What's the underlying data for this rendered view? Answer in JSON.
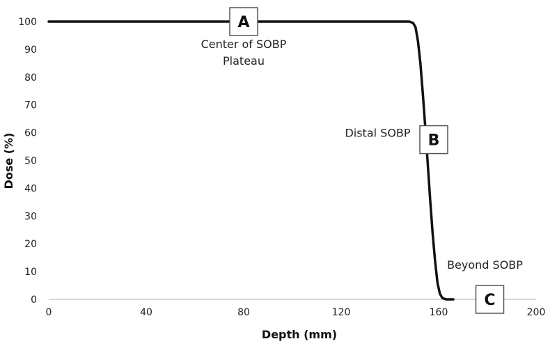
{
  "chart_data": {
    "type": "line",
    "title": "",
    "xlabel": "Depth (mm)",
    "ylabel": "Dose (%)",
    "xlim": [
      0,
      200
    ],
    "ylim": [
      0,
      100
    ],
    "xticks": [
      "0",
      "40",
      "80",
      "120",
      "160",
      "200"
    ],
    "yticks": [
      "0",
      "10",
      "20",
      "30",
      "40",
      "50",
      "60",
      "70",
      "80",
      "90",
      "100"
    ],
    "grid": false,
    "series": [
      {
        "x": [
          0,
          148,
          149.5,
          150.5,
          151.5,
          152.5,
          153.5,
          154.5,
          155.5,
          156.5,
          157.5,
          158.5,
          159.5,
          160.5,
          161.5,
          163,
          166
        ],
        "y": [
          100,
          100,
          99.5,
          98,
          93,
          85,
          74,
          62,
          49,
          36,
          24,
          14,
          6,
          2,
          0.5,
          0,
          0
        ],
        "color": "#111111"
      }
    ],
    "annotations": [
      {
        "text": "Center of SOBP",
        "x": 80,
        "y": 90.5
      },
      {
        "text": "Plateau",
        "x": 80,
        "y": 84.5
      },
      {
        "text": "Distal SOBP",
        "x": 135,
        "y": 58.5
      },
      {
        "text": "Beyond SOBP",
        "x": 179,
        "y": 11
      }
    ],
    "markers": [
      {
        "label": "A",
        "x": 80,
        "y": 100
      },
      {
        "label": "B",
        "x": 158,
        "y": 57.5
      },
      {
        "label": "C",
        "x": 181,
        "y": 0
      }
    ]
  }
}
